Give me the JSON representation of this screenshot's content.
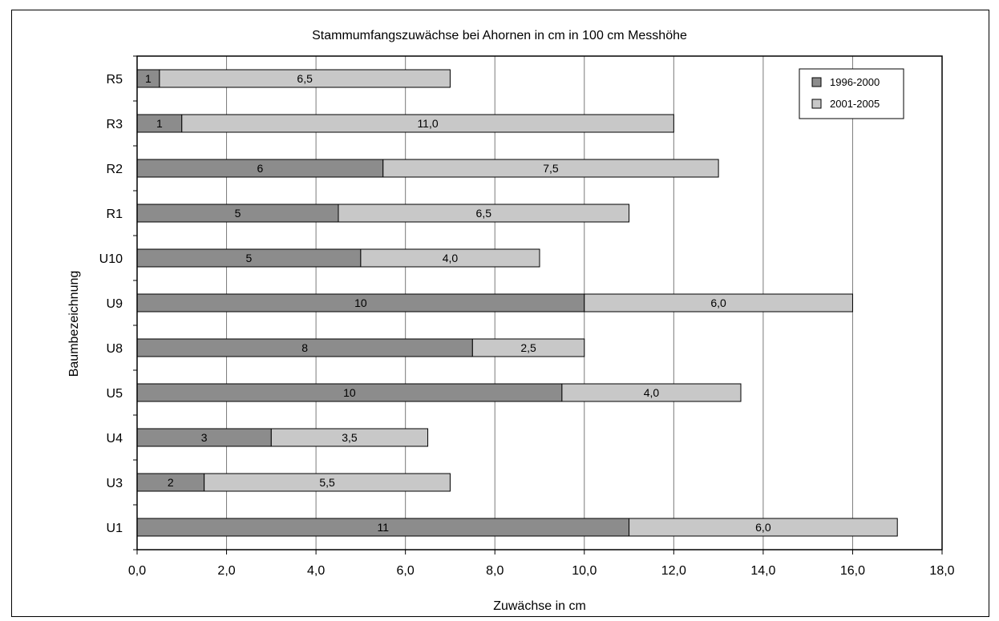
{
  "chart_data": {
    "type": "bar",
    "orientation": "horizontal",
    "stacked": true,
    "title": "Stammumfangszuwächse bei Ahornen in cm in 100 cm Messhöhe",
    "xlabel": "Zuwächse in cm",
    "ylabel": "Baumbezeichnung",
    "xlim": [
      0,
      18
    ],
    "xticks": [
      0,
      2,
      4,
      6,
      8,
      10,
      12,
      14,
      16,
      18
    ],
    "xtick_labels": [
      "0,0",
      "2,0",
      "4,0",
      "6,0",
      "8,0",
      "10,0",
      "12,0",
      "14,0",
      "16,0",
      "18,0"
    ],
    "grid": "vertical",
    "legend_position": "top-right",
    "categories": [
      "R5",
      "R3",
      "R2",
      "R1",
      "U10",
      "U9",
      "U8",
      "U5",
      "U4",
      "U3",
      "U1"
    ],
    "series": [
      {
        "name": "1996-2000",
        "color": "#8c8c8c",
        "values": [
          0.5,
          1.0,
          5.5,
          4.5,
          5.0,
          10.0,
          7.5,
          9.5,
          3.0,
          1.5,
          11.0
        ],
        "labels": [
          "1",
          "1",
          "6",
          "5",
          "5",
          "10",
          "8",
          "10",
          "3",
          "2",
          "11"
        ]
      },
      {
        "name": "2001-2005",
        "color": "#c8c8c8",
        "values": [
          6.5,
          11.0,
          7.5,
          6.5,
          4.0,
          6.0,
          2.5,
          4.0,
          3.5,
          5.5,
          6.0
        ],
        "labels": [
          "6,5",
          "11,0",
          "7,5",
          "6,5",
          "4,0",
          "6,0",
          "2,5",
          "4,0",
          "3,5",
          "5,5",
          "6,0"
        ]
      }
    ]
  }
}
